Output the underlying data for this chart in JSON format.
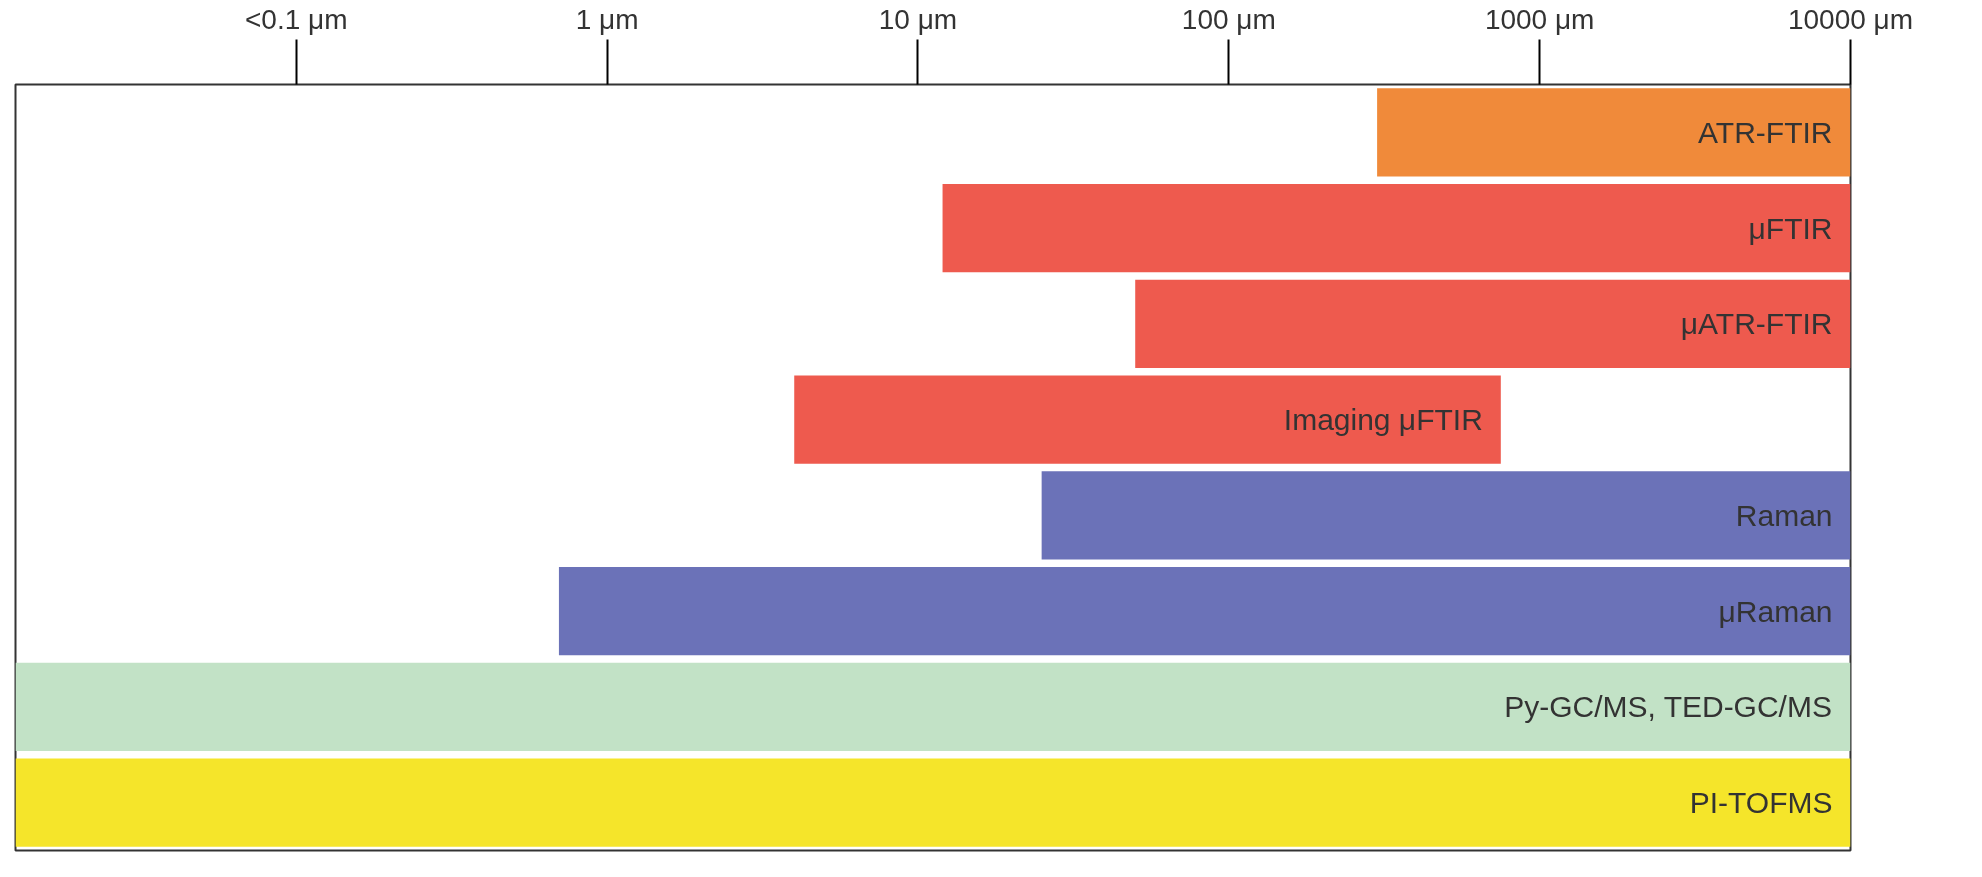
{
  "chart_data": {
    "type": "bar",
    "orientation": "horizontal",
    "log": "x",
    "categories": [
      "ATR-FTIR",
      "μFTIR",
      "μATR-FTIR",
      "Imaging μFTIR",
      "Raman",
      "μRaman",
      "Py-GC/MS, TED-GC/MS",
      "PI-TOFMS"
    ],
    "base": [
      300,
      12,
      50,
      4,
      25,
      0.7,
      0.0125,
      0.0125
    ],
    "values": [
      9700,
      9988,
      9950,
      746,
      9975,
      9999.3,
      9999.9875,
      9999.9875
    ],
    "colors": [
      "#f08a3a",
      "#ee5a4e",
      "#ee5a4e",
      "#ee5a4e",
      "#6b72b8",
      "#6b72b8",
      "#c2e2c6",
      "#f5e52a"
    ],
    "xlim": [
      0.0125,
      10000
    ],
    "xticks": [
      {
        "value": 0.1,
        "label": "<0.1 μm"
      },
      {
        "value": 1,
        "label": "1 μm"
      },
      {
        "value": 10,
        "label": "10 μm"
      },
      {
        "value": 100,
        "label": "100 μm"
      },
      {
        "value": 1000,
        "label": "1000 μm"
      },
      {
        "value": 10000,
        "label": "10000 μm"
      }
    ],
    "tick_labels": "x",
    "grid": false
  }
}
